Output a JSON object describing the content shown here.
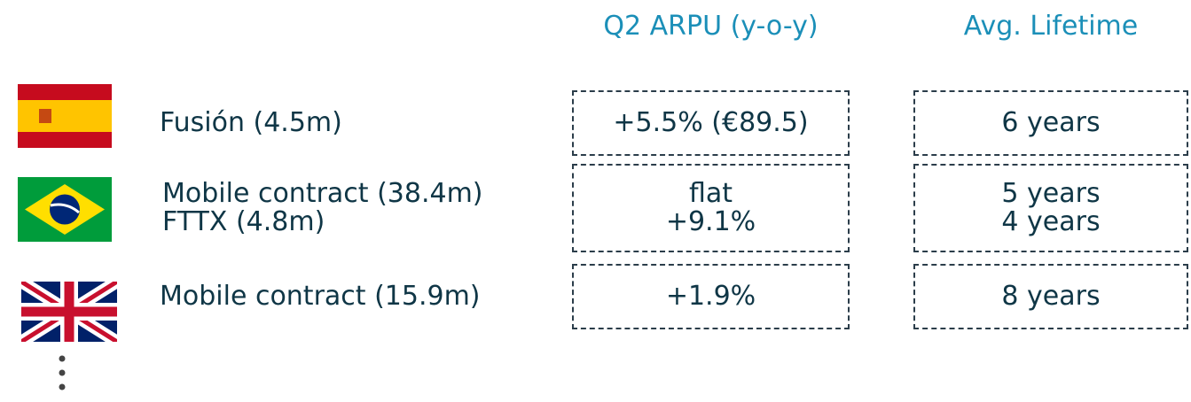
{
  "header": {
    "columns": [
      "Q2 ARPU (y-o-y)",
      "Avg. Lifetime"
    ]
  },
  "rows": [
    {
      "segments": [
        "Fusión (4.5m)"
      ],
      "arpu": [
        "+5.5% (€89.5)"
      ],
      "lifetime": [
        "6 years"
      ]
    },
    {
      "segments": [
        "Mobile contract (38.4m)",
        "FTTX (4.8m)"
      ],
      "arpu": [
        "flat",
        "+9.1%"
      ],
      "lifetime": [
        "5 years",
        "4 years"
      ]
    },
    {
      "segments": [
        "Mobile contract (15.9m)"
      ],
      "arpu": [
        "+1.9%"
      ],
      "lifetime": [
        "8 years"
      ]
    }
  ]
}
